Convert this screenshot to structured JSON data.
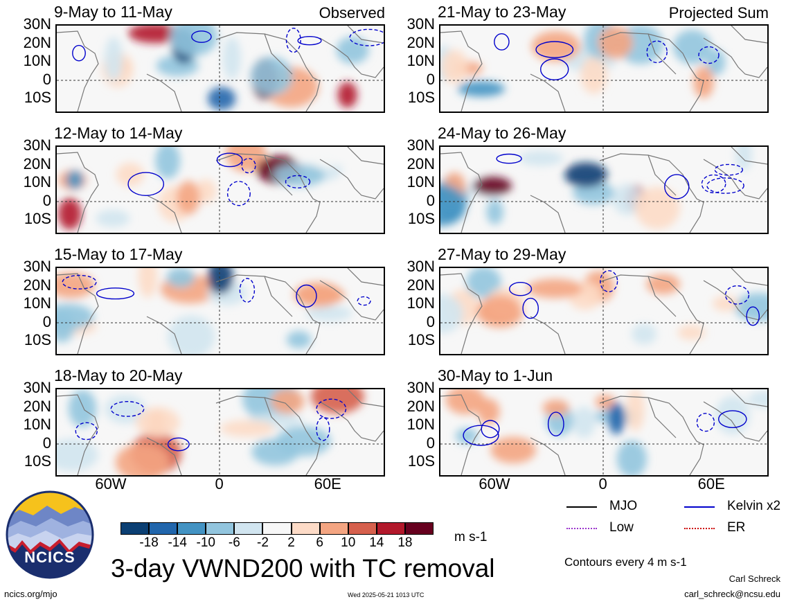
{
  "panels": [
    {
      "title": "9-May to 11-May",
      "corner": "Observed"
    },
    {
      "title": "21-May to 23-May",
      "corner": "Projected Sum"
    },
    {
      "title": "12-May to 14-May",
      "corner": ""
    },
    {
      "title": "24-May to 26-May",
      "corner": ""
    },
    {
      "title": "15-May to 17-May",
      "corner": ""
    },
    {
      "title": "27-May to 29-May",
      "corner": ""
    },
    {
      "title": "18-May to 20-May",
      "corner": ""
    },
    {
      "title": "30-May to 1-Jun",
      "corner": ""
    }
  ],
  "lat_labels": [
    "30N",
    "20N",
    "10N",
    "0",
    "10S"
  ],
  "lon_labels": [
    "60W",
    "0",
    "60E"
  ],
  "colorbar": {
    "colors": [
      "#0b3f73",
      "#2166ac",
      "#4393c3",
      "#92c5de",
      "#d1e5f0",
      "#f7f7f7",
      "#fddbc7",
      "#f4a582",
      "#d6604d",
      "#b2182b",
      "#67001f"
    ],
    "ticks": [
      "-18",
      "-14",
      "-10",
      "-6",
      "-2",
      "2",
      "6",
      "10",
      "14",
      "18"
    ],
    "units": "m s-1"
  },
  "legend": [
    {
      "label": "MJO",
      "color": "#000000"
    },
    {
      "label": "Kelvin x2",
      "color": "#0000cc"
    },
    {
      "label": "Low",
      "color": "#9933cc"
    },
    {
      "label": "ER",
      "color": "#cc0000"
    }
  ],
  "contour_note": "Contours every 4 m s-1",
  "main_title": "3-day VWND200 with TC removal",
  "logo_text": "NCICS",
  "url": "ncics.org/mjo",
  "timestamp": "Wed 2025-05-21 1013 UTC",
  "author": "Carl Schreck",
  "email": "carl_schreck@ncsu.edu"
}
